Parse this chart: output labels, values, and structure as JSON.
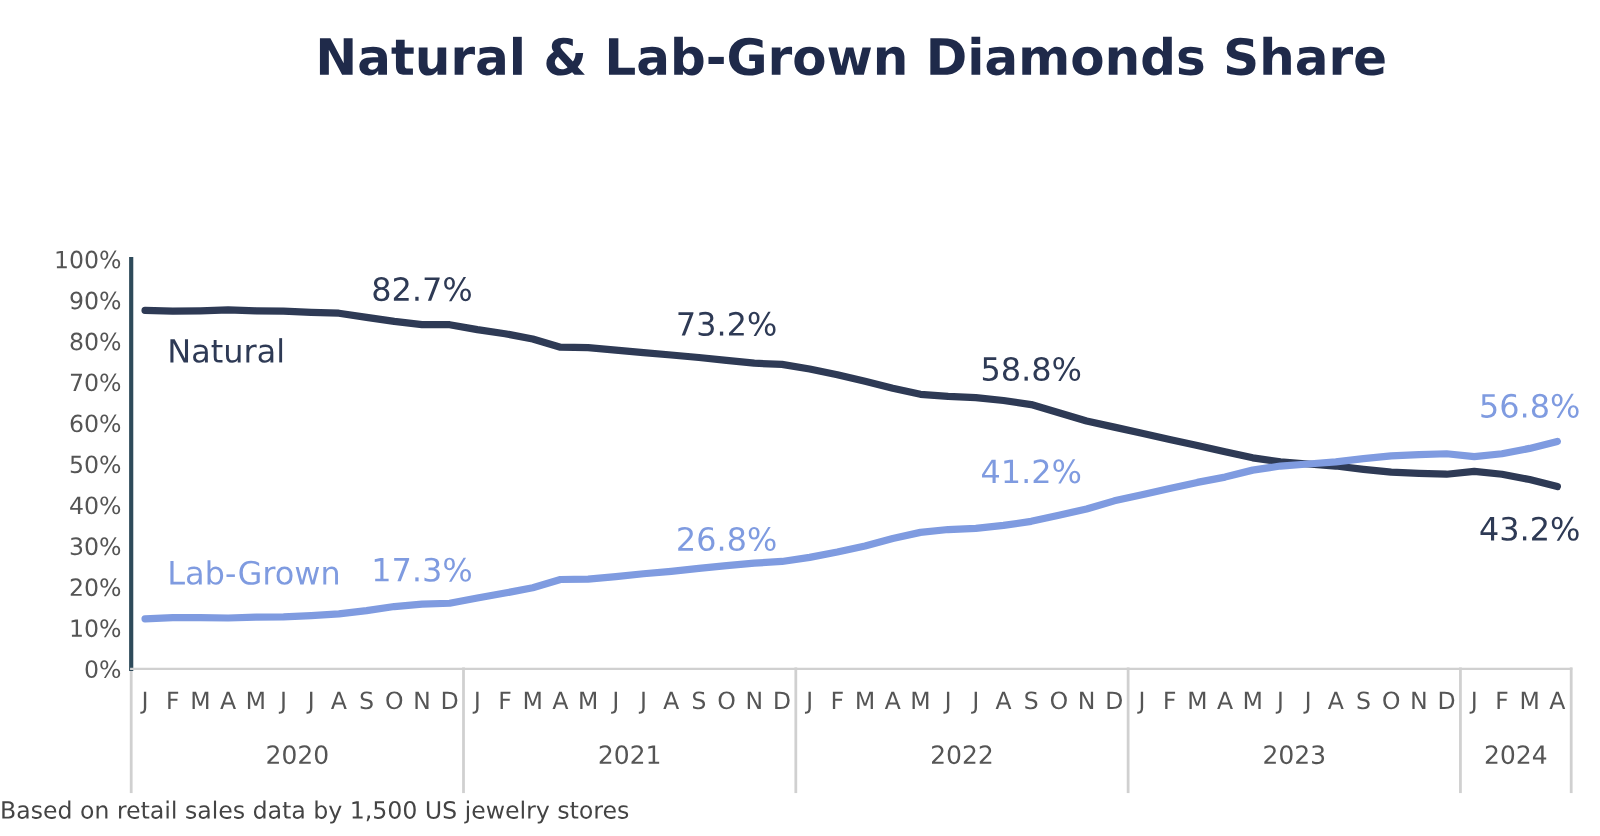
{
  "chart_data": {
    "type": "line",
    "title": "Natural & Lab-Grown Diamonds Share",
    "categories": [
      "J",
      "F",
      "M",
      "A",
      "M",
      "J",
      "J",
      "A",
      "S",
      "O",
      "N",
      "D",
      "J",
      "F",
      "M",
      "A",
      "M",
      "J",
      "J",
      "A",
      "S",
      "O",
      "N",
      "D",
      "J",
      "F",
      "M",
      "A",
      "M",
      "J",
      "J",
      "A",
      "S",
      "O",
      "N",
      "D",
      "J",
      "F",
      "M",
      "A",
      "M",
      "J",
      "J",
      "A",
      "S",
      "O",
      "N",
      "D",
      "J",
      "F",
      "M",
      "A"
    ],
    "series": [
      {
        "name": "Natural",
        "color": "#2e3a55",
        "values": [
          87.5,
          87.3,
          87.4,
          87.6,
          87.4,
          87.3,
          87,
          86.8,
          85.8,
          84.8,
          84,
          84,
          82.8,
          81.8,
          80.5,
          78.5,
          78.4,
          77.8,
          77.2,
          76.6,
          76,
          75.3,
          74.6,
          74.3,
          73.2,
          71.8,
          70.2,
          68.5,
          67,
          66.5,
          66.2,
          65.5,
          64.5,
          62.5,
          60.5,
          59,
          57.5,
          56,
          54.5,
          53,
          51.5,
          50.5,
          50,
          49.5,
          48.7,
          48,
          47.7,
          47.5,
          48.2,
          47.5,
          46.2,
          44.5
        ]
      },
      {
        "name": "Lab-Grown",
        "color": "#7f9be0",
        "values": [
          12.2,
          12.5,
          12.5,
          12.4,
          12.6,
          12.7,
          13,
          13.4,
          14.2,
          15.2,
          15.8,
          16,
          17.3,
          18.5,
          19.8,
          21.8,
          21.9,
          22.5,
          23.2,
          23.8,
          24.5,
          25.2,
          25.8,
          26.2,
          27.2,
          28.5,
          30,
          31.8,
          33.3,
          34,
          34.3,
          35,
          36,
          37.5,
          39,
          41,
          42.5,
          44,
          45.5,
          46.8,
          48.5,
          49.5,
          50,
          50.5,
          51.3,
          52,
          52.3,
          52.5,
          51.8,
          52.5,
          53.8,
          55.5
        ]
      }
    ],
    "ylim": [
      0,
      100
    ],
    "yticks": [
      {
        "value": 0,
        "label": "0%"
      },
      {
        "value": 10,
        "label": "10%"
      },
      {
        "value": 20,
        "label": "20%"
      },
      {
        "value": 30,
        "label": "30%"
      },
      {
        "value": 40,
        "label": "40%"
      },
      {
        "value": 50,
        "label": "50%"
      },
      {
        "value": 60,
        "label": "60%"
      },
      {
        "value": 70,
        "label": "70%"
      },
      {
        "value": 80,
        "label": "80%"
      },
      {
        "value": 90,
        "label": "90%"
      },
      {
        "value": 100,
        "label": "100%"
      }
    ],
    "grid": false,
    "legend": false,
    "marker": "none",
    "line_style": "solid",
    "annotations": [
      "82.7%",
      "73.2%",
      "58.8%",
      "43.2%",
      "17.3%",
      "26.8%",
      "41.2%",
      "56.8%",
      "2020",
      "2021",
      "2022",
      "2023",
      "2024",
      "Based on retail sales data by 1,500 US jewelry stores"
    ]
  }
}
